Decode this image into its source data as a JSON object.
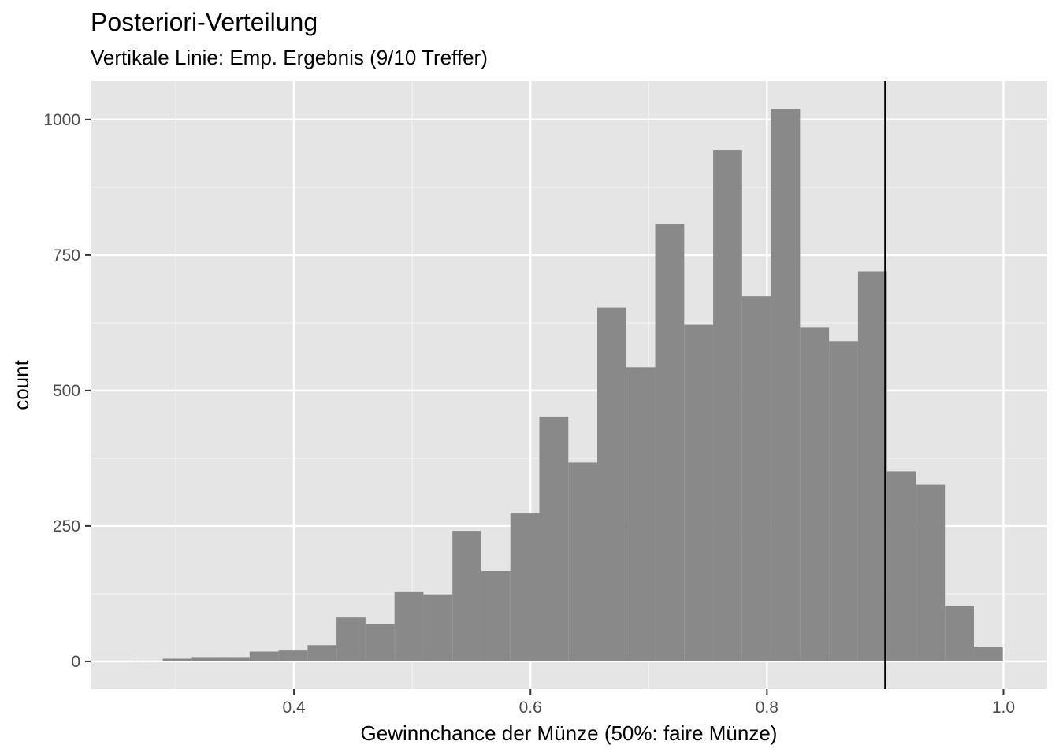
{
  "chart_data": {
    "type": "bar",
    "title": "Posteriori-Verteilung",
    "subtitle": "Vertikale Linie: Emp. Ergebnis (9/10 Treffer)",
    "xlabel": "Gewinnchance der Münze (50%: faire Münze)",
    "ylabel": "count",
    "xlim": [
      0.228,
      1.037
    ],
    "ylim": [
      -51,
      1071
    ],
    "x_ticks": [
      0.4,
      0.6,
      0.8,
      1.0
    ],
    "x_tick_labels": [
      "0.4",
      "0.6",
      "0.8",
      "1.0"
    ],
    "y_ticks": [
      0,
      250,
      500,
      750,
      1000
    ],
    "y_tick_labels": [
      "0",
      "250",
      "500",
      "750",
      "1000"
    ],
    "bin_width": 0.0245,
    "bins": [
      {
        "x0": 0.2645,
        "x1": 0.289,
        "count": 1
      },
      {
        "x0": 0.289,
        "x1": 0.3135,
        "count": 5
      },
      {
        "x0": 0.3135,
        "x1": 0.338,
        "count": 8
      },
      {
        "x0": 0.338,
        "x1": 0.3625,
        "count": 8
      },
      {
        "x0": 0.3625,
        "x1": 0.387,
        "count": 18
      },
      {
        "x0": 0.387,
        "x1": 0.4115,
        "count": 20
      },
      {
        "x0": 0.4115,
        "x1": 0.436,
        "count": 30
      },
      {
        "x0": 0.436,
        "x1": 0.4605,
        "count": 81
      },
      {
        "x0": 0.4605,
        "x1": 0.485,
        "count": 69
      },
      {
        "x0": 0.485,
        "x1": 0.5095,
        "count": 128
      },
      {
        "x0": 0.5095,
        "x1": 0.534,
        "count": 124
      },
      {
        "x0": 0.534,
        "x1": 0.5585,
        "count": 241
      },
      {
        "x0": 0.5585,
        "x1": 0.583,
        "count": 167
      },
      {
        "x0": 0.583,
        "x1": 0.6075,
        "count": 273
      },
      {
        "x0": 0.6075,
        "x1": 0.632,
        "count": 452
      },
      {
        "x0": 0.632,
        "x1": 0.6565,
        "count": 367
      },
      {
        "x0": 0.6565,
        "x1": 0.681,
        "count": 653
      },
      {
        "x0": 0.681,
        "x1": 0.7055,
        "count": 543
      },
      {
        "x0": 0.7055,
        "x1": 0.73,
        "count": 808
      },
      {
        "x0": 0.73,
        "x1": 0.7545,
        "count": 621
      },
      {
        "x0": 0.7545,
        "x1": 0.779,
        "count": 943
      },
      {
        "x0": 0.779,
        "x1": 0.8035,
        "count": 674
      },
      {
        "x0": 0.8035,
        "x1": 0.828,
        "count": 1020
      },
      {
        "x0": 0.828,
        "x1": 0.8525,
        "count": 617
      },
      {
        "x0": 0.8525,
        "x1": 0.877,
        "count": 591
      },
      {
        "x0": 0.877,
        "x1": 0.9015,
        "count": 720
      },
      {
        "x0": 0.9015,
        "x1": 0.926,
        "count": 351
      },
      {
        "x0": 0.926,
        "x1": 0.9505,
        "count": 326
      },
      {
        "x0": 0.9505,
        "x1": 0.975,
        "count": 102
      },
      {
        "x0": 0.975,
        "x1": 0.9995,
        "count": 26
      }
    ],
    "vline": {
      "x": 0.9,
      "color": "#000000"
    },
    "grid": true,
    "colors": {
      "bar": "#898989",
      "panel": "#e5e5e5",
      "grid_major": "#ffffff",
      "grid_minor": "#f2f2f2",
      "tick": "#333333",
      "tick_label": "#4d4d4d"
    }
  }
}
